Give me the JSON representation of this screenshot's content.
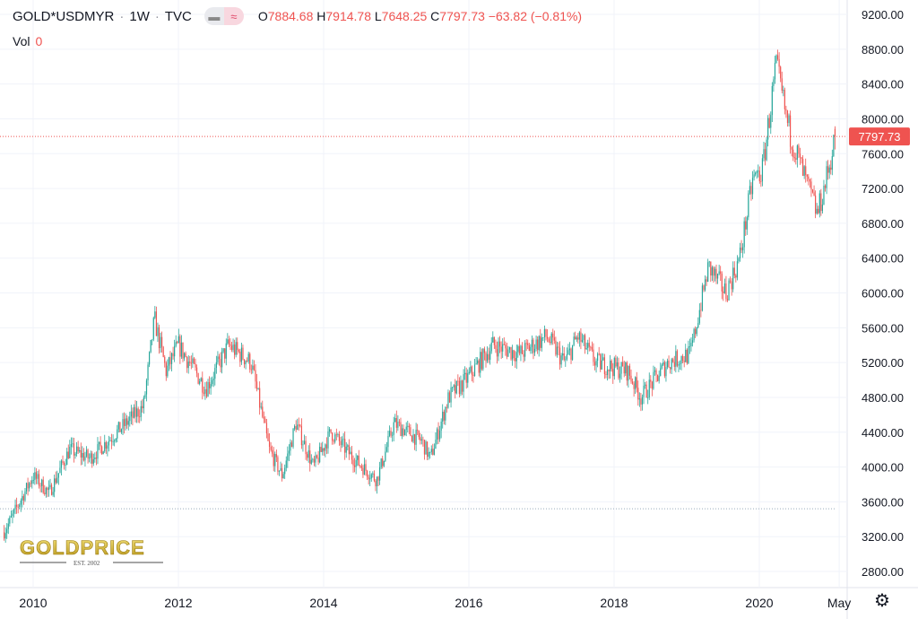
{
  "header": {
    "symbol": "GOLD*USDMYR",
    "interval": "1W",
    "source": "TVC",
    "open_label": "O",
    "open": "7884.68",
    "high_label": "H",
    "high": "7914.78",
    "low_label": "L",
    "low": "7648.25",
    "close_label": "C",
    "close": "7797.73",
    "change": "−63.82 (−0.81%)",
    "vol_label": "Vol",
    "vol": "0"
  },
  "logo": {
    "text": "GOLDPRICE",
    "sub": "EST. 2002"
  },
  "colors": {
    "up": "#26a69a",
    "down": "#ef5350",
    "grid": "#f0f3fa",
    "price_label_bg": "#ef5350"
  },
  "chart_data": {
    "type": "candlestick",
    "interval": "weekly",
    "ylim": [
      2800,
      9200
    ],
    "y_ticks": [
      "9200.00",
      "8800.00",
      "8400.00",
      "8000.00",
      "7600.00",
      "7200.00",
      "6800.00",
      "6400.00",
      "6000.00",
      "5600.00",
      "5200.00",
      "4800.00",
      "4400.00",
      "4000.00",
      "3600.00",
      "3200.00",
      "2800.00"
    ],
    "x_ticks": [
      {
        "label": "2010",
        "t": 2010
      },
      {
        "label": "2012",
        "t": 2012
      },
      {
        "label": "2014",
        "t": 2014
      },
      {
        "label": "2016",
        "t": 2016
      },
      {
        "label": "2018",
        "t": 2018
      },
      {
        "label": "2020",
        "t": 2020
      },
      {
        "label": "May",
        "t": 2021.1
      }
    ],
    "last_price": 7797.73,
    "last_price_label": "7797.73",
    "reference_line": 3520,
    "grid": true,
    "approx_close_path": [
      [
        2009.6,
        3250
      ],
      [
        2010.0,
        3900
      ],
      [
        2010.22,
        3700
      ],
      [
        2010.5,
        4200
      ],
      [
        2010.78,
        4100
      ],
      [
        2011.09,
        4350
      ],
      [
        2011.52,
        4700
      ],
      [
        2011.67,
        5700
      ],
      [
        2011.83,
        5100
      ],
      [
        2012.0,
        5400
      ],
      [
        2012.38,
        4900
      ],
      [
        2012.69,
        5400
      ],
      [
        2013.0,
        5200
      ],
      [
        2013.25,
        4200
      ],
      [
        2013.43,
        3900
      ],
      [
        2013.62,
        4500
      ],
      [
        2013.86,
        4000
      ],
      [
        2014.1,
        4400
      ],
      [
        2014.41,
        4100
      ],
      [
        2014.73,
        3850
      ],
      [
        2014.97,
        4500
      ],
      [
        2015.35,
        4300
      ],
      [
        2015.47,
        4100
      ],
      [
        2015.72,
        4800
      ],
      [
        2015.96,
        5000
      ],
      [
        2016.33,
        5400
      ],
      [
        2016.7,
        5300
      ],
      [
        2017.07,
        5500
      ],
      [
        2017.32,
        5200
      ],
      [
        2017.5,
        5500
      ],
      [
        2017.75,
        5200
      ],
      [
        2018.19,
        5100
      ],
      [
        2018.37,
        4800
      ],
      [
        2018.74,
        5200
      ],
      [
        2019.05,
        5300
      ],
      [
        2019.3,
        6300
      ],
      [
        2019.54,
        6000
      ],
      [
        2019.73,
        6400
      ],
      [
        2019.91,
        7300
      ],
      [
        2020.04,
        7400
      ],
      [
        2020.23,
        8600
      ],
      [
        2020.4,
        7900
      ],
      [
        2020.59,
        7400
      ],
      [
        2020.8,
        6900
      ],
      [
        2020.92,
        7300
      ],
      [
        2021.05,
        7797.73
      ]
    ]
  }
}
